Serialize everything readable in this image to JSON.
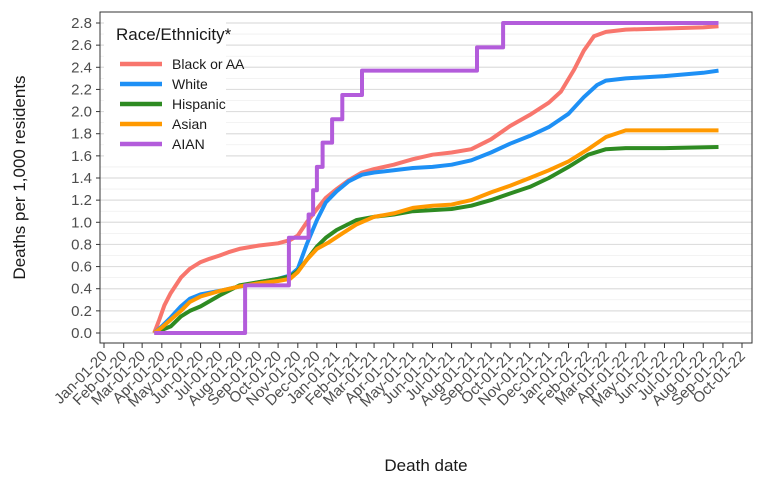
{
  "chart_data": {
    "type": "line",
    "title": "",
    "xlabel": "Death date",
    "ylabel": "Deaths per 1,000 residents",
    "ylim": [
      0,
      2.8
    ],
    "y_ticks": [
      "0.0",
      "0.2",
      "0.4",
      "0.6",
      "0.8",
      "1.0",
      "1.2",
      "1.4",
      "1.6",
      "1.8",
      "2.0",
      "2.2",
      "2.4",
      "2.6",
      "2.8"
    ],
    "x_ticks": [
      "Jan-01-20",
      "Feb-01-20",
      "Mar-01-20",
      "Apr-01-20",
      "May-01-20",
      "Jun-01-20",
      "Jul-01-20",
      "Aug-01-20",
      "Sep-01-20",
      "Oct-01-20",
      "Nov-01-20",
      "Dec-01-20",
      "Jan-01-21",
      "Feb-01-21",
      "Mar-01-21",
      "Apr-01-21",
      "May-01-21",
      "Jun-01-21",
      "Jul-01-21",
      "Aug-01-21",
      "Sep-01-21",
      "Oct-01-21",
      "Nov-01-21",
      "Dec-01-21",
      "Jan-01-22",
      "Feb-01-22",
      "Mar-01-22",
      "Apr-01-22",
      "May-01-22",
      "Jun-01-22",
      "Jul-01-22",
      "Aug-01-22",
      "Sep-01-22",
      "Oct-01-22"
    ],
    "xlim": [
      "2020-01-01",
      "2022-10-01"
    ],
    "legend": {
      "title": "Race/Ethnicity*",
      "position": "top-left"
    },
    "grid": true,
    "series": [
      {
        "name": "Black or AA",
        "color": "#F8766D",
        "step": false,
        "points": [
          [
            "2020-03-20",
            0.0
          ],
          [
            "2020-03-28",
            0.12
          ],
          [
            "2020-04-05",
            0.25
          ],
          [
            "2020-04-15",
            0.36
          ],
          [
            "2020-05-01",
            0.5
          ],
          [
            "2020-05-15",
            0.58
          ],
          [
            "2020-06-01",
            0.64
          ],
          [
            "2020-06-15",
            0.67
          ],
          [
            "2020-07-01",
            0.7
          ],
          [
            "2020-07-15",
            0.73
          ],
          [
            "2020-08-01",
            0.76
          ],
          [
            "2020-09-01",
            0.79
          ],
          [
            "2020-10-01",
            0.81
          ],
          [
            "2020-10-20",
            0.84
          ],
          [
            "2020-11-01",
            0.88
          ],
          [
            "2020-11-15",
            1.0
          ],
          [
            "2020-12-01",
            1.12
          ],
          [
            "2020-12-15",
            1.22
          ],
          [
            "2021-01-01",
            1.3
          ],
          [
            "2021-01-20",
            1.38
          ],
          [
            "2021-02-10",
            1.45
          ],
          [
            "2021-03-01",
            1.48
          ],
          [
            "2021-04-01",
            1.52
          ],
          [
            "2021-05-01",
            1.57
          ],
          [
            "2021-06-01",
            1.61
          ],
          [
            "2021-07-01",
            1.63
          ],
          [
            "2021-08-01",
            1.66
          ],
          [
            "2021-09-01",
            1.75
          ],
          [
            "2021-10-01",
            1.87
          ],
          [
            "2021-11-01",
            1.97
          ],
          [
            "2021-12-01",
            2.08
          ],
          [
            "2021-12-20",
            2.18
          ],
          [
            "2022-01-10",
            2.38
          ],
          [
            "2022-01-25",
            2.55
          ],
          [
            "2022-02-10",
            2.68
          ],
          [
            "2022-03-01",
            2.72
          ],
          [
            "2022-04-01",
            2.74
          ],
          [
            "2022-06-01",
            2.75
          ],
          [
            "2022-08-01",
            2.76
          ],
          [
            "2022-08-25",
            2.77
          ]
        ]
      },
      {
        "name": "White",
        "color": "#1E90F5",
        "step": false,
        "points": [
          [
            "2020-03-20",
            0.0
          ],
          [
            "2020-04-01",
            0.06
          ],
          [
            "2020-04-15",
            0.14
          ],
          [
            "2020-05-01",
            0.24
          ],
          [
            "2020-05-15",
            0.31
          ],
          [
            "2020-06-01",
            0.35
          ],
          [
            "2020-07-01",
            0.38
          ],
          [
            "2020-08-01",
            0.42
          ],
          [
            "2020-09-01",
            0.46
          ],
          [
            "2020-10-01",
            0.49
          ],
          [
            "2020-10-20",
            0.52
          ],
          [
            "2020-11-01",
            0.58
          ],
          [
            "2020-11-15",
            0.8
          ],
          [
            "2020-12-01",
            1.02
          ],
          [
            "2020-12-15",
            1.18
          ],
          [
            "2021-01-01",
            1.28
          ],
          [
            "2021-01-20",
            1.37
          ],
          [
            "2021-02-10",
            1.43
          ],
          [
            "2021-03-01",
            1.45
          ],
          [
            "2021-04-01",
            1.47
          ],
          [
            "2021-05-01",
            1.49
          ],
          [
            "2021-06-01",
            1.5
          ],
          [
            "2021-07-01",
            1.52
          ],
          [
            "2021-08-01",
            1.56
          ],
          [
            "2021-09-01",
            1.63
          ],
          [
            "2021-10-01",
            1.71
          ],
          [
            "2021-11-01",
            1.78
          ],
          [
            "2021-12-01",
            1.86
          ],
          [
            "2022-01-01",
            1.98
          ],
          [
            "2022-01-25",
            2.13
          ],
          [
            "2022-02-15",
            2.24
          ],
          [
            "2022-03-01",
            2.28
          ],
          [
            "2022-04-01",
            2.3
          ],
          [
            "2022-06-01",
            2.32
          ],
          [
            "2022-08-01",
            2.35
          ],
          [
            "2022-08-25",
            2.37
          ]
        ]
      },
      {
        "name": "Hispanic",
        "color": "#2E8B22",
        "step": false,
        "points": [
          [
            "2020-03-20",
            0.0
          ],
          [
            "2020-04-15",
            0.06
          ],
          [
            "2020-05-01",
            0.15
          ],
          [
            "2020-05-15",
            0.2
          ],
          [
            "2020-06-01",
            0.24
          ],
          [
            "2020-07-01",
            0.34
          ],
          [
            "2020-08-01",
            0.43
          ],
          [
            "2020-09-01",
            0.46
          ],
          [
            "2020-10-01",
            0.49
          ],
          [
            "2020-10-20",
            0.51
          ],
          [
            "2020-11-01",
            0.56
          ],
          [
            "2020-11-15",
            0.66
          ],
          [
            "2020-12-01",
            0.78
          ],
          [
            "2020-12-15",
            0.86
          ],
          [
            "2021-01-01",
            0.93
          ],
          [
            "2021-02-01",
            1.02
          ],
          [
            "2021-03-01",
            1.05
          ],
          [
            "2021-04-01",
            1.07
          ],
          [
            "2021-05-01",
            1.1
          ],
          [
            "2021-06-01",
            1.11
          ],
          [
            "2021-07-01",
            1.12
          ],
          [
            "2021-08-01",
            1.15
          ],
          [
            "2021-09-01",
            1.2
          ],
          [
            "2021-10-01",
            1.26
          ],
          [
            "2021-11-01",
            1.32
          ],
          [
            "2021-12-01",
            1.4
          ],
          [
            "2022-01-01",
            1.5
          ],
          [
            "2022-02-01",
            1.61
          ],
          [
            "2022-03-01",
            1.66
          ],
          [
            "2022-04-01",
            1.67
          ],
          [
            "2022-06-01",
            1.67
          ],
          [
            "2022-08-25",
            1.68
          ]
        ]
      },
      {
        "name": "Asian",
        "color": "#FF9900",
        "step": false,
        "points": [
          [
            "2020-03-20",
            0.0
          ],
          [
            "2020-04-01",
            0.05
          ],
          [
            "2020-04-15",
            0.12
          ],
          [
            "2020-05-01",
            0.2
          ],
          [
            "2020-05-15",
            0.28
          ],
          [
            "2020-06-01",
            0.33
          ],
          [
            "2020-07-01",
            0.38
          ],
          [
            "2020-08-01",
            0.42
          ],
          [
            "2020-09-01",
            0.45
          ],
          [
            "2020-10-01",
            0.47
          ],
          [
            "2020-10-20",
            0.49
          ],
          [
            "2020-11-01",
            0.55
          ],
          [
            "2020-11-15",
            0.66
          ],
          [
            "2020-12-01",
            0.76
          ],
          [
            "2020-12-20",
            0.82
          ],
          [
            "2021-01-10",
            0.9
          ],
          [
            "2021-02-01",
            0.98
          ],
          [
            "2021-03-01",
            1.05
          ],
          [
            "2021-04-01",
            1.08
          ],
          [
            "2021-05-01",
            1.13
          ],
          [
            "2021-06-01",
            1.15
          ],
          [
            "2021-07-01",
            1.16
          ],
          [
            "2021-08-01",
            1.2
          ],
          [
            "2021-09-01",
            1.27
          ],
          [
            "2021-10-01",
            1.33
          ],
          [
            "2021-11-01",
            1.4
          ],
          [
            "2021-12-01",
            1.47
          ],
          [
            "2022-01-01",
            1.55
          ],
          [
            "2022-02-01",
            1.66
          ],
          [
            "2022-03-01",
            1.77
          ],
          [
            "2022-04-01",
            1.83
          ],
          [
            "2022-06-01",
            1.83
          ],
          [
            "2022-08-25",
            1.83
          ]
        ]
      },
      {
        "name": "AIAN",
        "color": "#B35CDB",
        "step": true,
        "points": [
          [
            "2020-03-20",
            0.0
          ],
          [
            "2020-08-10",
            0.43
          ],
          [
            "2020-10-18",
            0.86
          ],
          [
            "2020-11-18",
            1.07
          ],
          [
            "2020-11-25",
            1.29
          ],
          [
            "2020-12-01",
            1.5
          ],
          [
            "2020-12-10",
            1.72
          ],
          [
            "2020-12-25",
            1.93
          ],
          [
            "2021-01-10",
            2.15
          ],
          [
            "2021-02-10",
            2.37
          ],
          [
            "2021-08-10",
            2.58
          ],
          [
            "2021-09-20",
            2.8
          ],
          [
            "2022-08-25",
            2.8
          ]
        ]
      }
    ]
  }
}
